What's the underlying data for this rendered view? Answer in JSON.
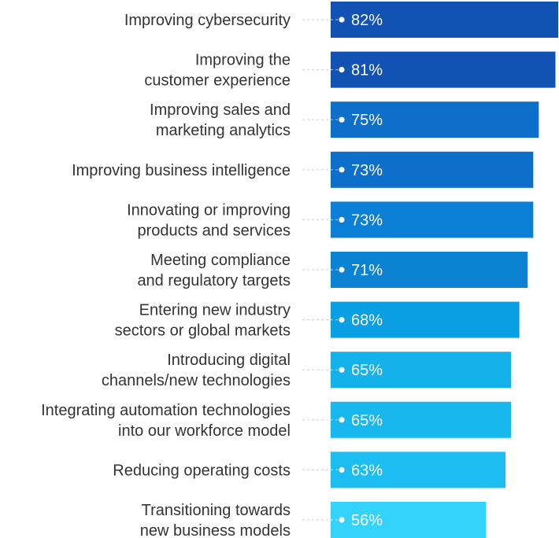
{
  "chart_data": {
    "type": "bar",
    "orientation": "horizontal",
    "categories": [
      [
        "Improving cybersecurity"
      ],
      [
        "Improving the",
        "customer experience"
      ],
      [
        "Improving sales and",
        "marketing analytics"
      ],
      [
        "Improving business intelligence"
      ],
      [
        "Innovating or improving",
        "products and services"
      ],
      [
        "Meeting compliance",
        "and regulatory targets"
      ],
      [
        "Entering new industry",
        "sectors or global markets"
      ],
      [
        "Introducing digital",
        "channels/new technologies"
      ],
      [
        "Integrating automation technologies",
        "into our workforce model"
      ],
      [
        "Reducing operating costs"
      ],
      [
        "Transitioning towards",
        "new business models"
      ]
    ],
    "values": [
      82,
      81,
      75,
      73,
      73,
      71,
      68,
      65,
      65,
      63,
      56
    ],
    "value_labels": [
      "82%",
      "81%",
      "75%",
      "73%",
      "73%",
      "71%",
      "68%",
      "65%",
      "65%",
      "63%",
      "56%"
    ],
    "bar_colors": [
      "#1152b3",
      "#1152b3",
      "#0d6fc9",
      "#0d6fc9",
      "#0b7fd6",
      "#0b82d2",
      "#0a9ee2",
      "#14b1ea",
      "#18b8ee",
      "#1cbdf0",
      "#33d3fb"
    ],
    "title": "",
    "xlabel": "",
    "ylabel": "",
    "xlim": [
      0,
      82
    ],
    "grid": false,
    "legend": "none"
  }
}
